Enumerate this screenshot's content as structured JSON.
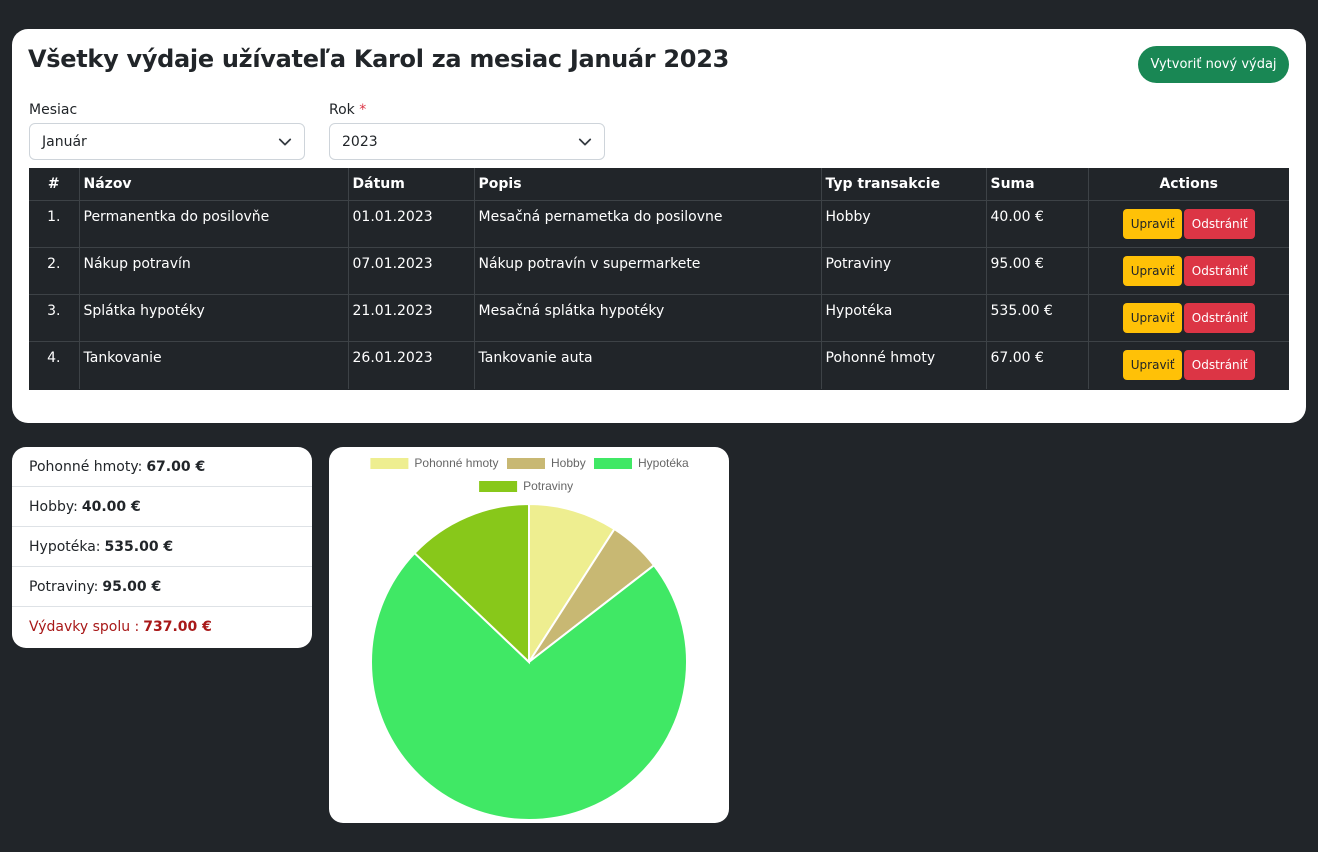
{
  "header": {
    "title": "Všetky výdaje užívateľa Karol za mesiac Január 2023",
    "create_button": "Vytvoriť nový výdaj"
  },
  "filters": {
    "month_label": "Mesiac",
    "month_value": "Január",
    "year_label": "Rok",
    "year_required_mark": "*",
    "year_value": "2023"
  },
  "table": {
    "headers": {
      "num": "#",
      "name": "Názov",
      "date": "Dátum",
      "desc": "Popis",
      "type": "Typ transakcie",
      "sum": "Suma",
      "actions": "Actions"
    },
    "edit_label": "Upraviť",
    "delete_label": "Odstrániť",
    "rows": [
      {
        "num": "1.",
        "name": "Permanentka do posilovňe",
        "date": "01.01.2023",
        "desc": "Mesačná pernametka do posilovne",
        "type": "Hobby",
        "sum": "40.00 €"
      },
      {
        "num": "2.",
        "name": "Nákup potravín",
        "date": "07.01.2023",
        "desc": "Nákup potravín v supermarkete",
        "type": "Potraviny",
        "sum": "95.00 €"
      },
      {
        "num": "3.",
        "name": "Splátka hypotéky",
        "date": "21.01.2023",
        "desc": "Mesačná splátka hypotéky",
        "type": "Hypotéka",
        "sum": "535.00 €"
      },
      {
        "num": "4.",
        "name": "Tankovanie",
        "date": "26.01.2023",
        "desc": "Tankovanie auta",
        "type": "Pohonné hmoty",
        "sum": "67.00 €"
      }
    ]
  },
  "summary": {
    "items": [
      {
        "label": "Pohonné hmoty:",
        "value": "67.00 €"
      },
      {
        "label": "Hobby:",
        "value": "40.00 €"
      },
      {
        "label": "Hypotéka:",
        "value": "535.00 €"
      },
      {
        "label": "Potraviny:",
        "value": "95.00 €"
      }
    ],
    "total_label": "Výdavky spolu :",
    "total_value": "737.00 €"
  },
  "chart_data": {
    "type": "pie",
    "categories": [
      "Pohonné hmoty",
      "Hobby",
      "Hypotéka",
      "Potraviny"
    ],
    "values": [
      67,
      40,
      535,
      95
    ],
    "colors": [
      "#eeee90",
      "#c8b873",
      "#40e865",
      "#88c81a"
    ],
    "legend": "top"
  }
}
